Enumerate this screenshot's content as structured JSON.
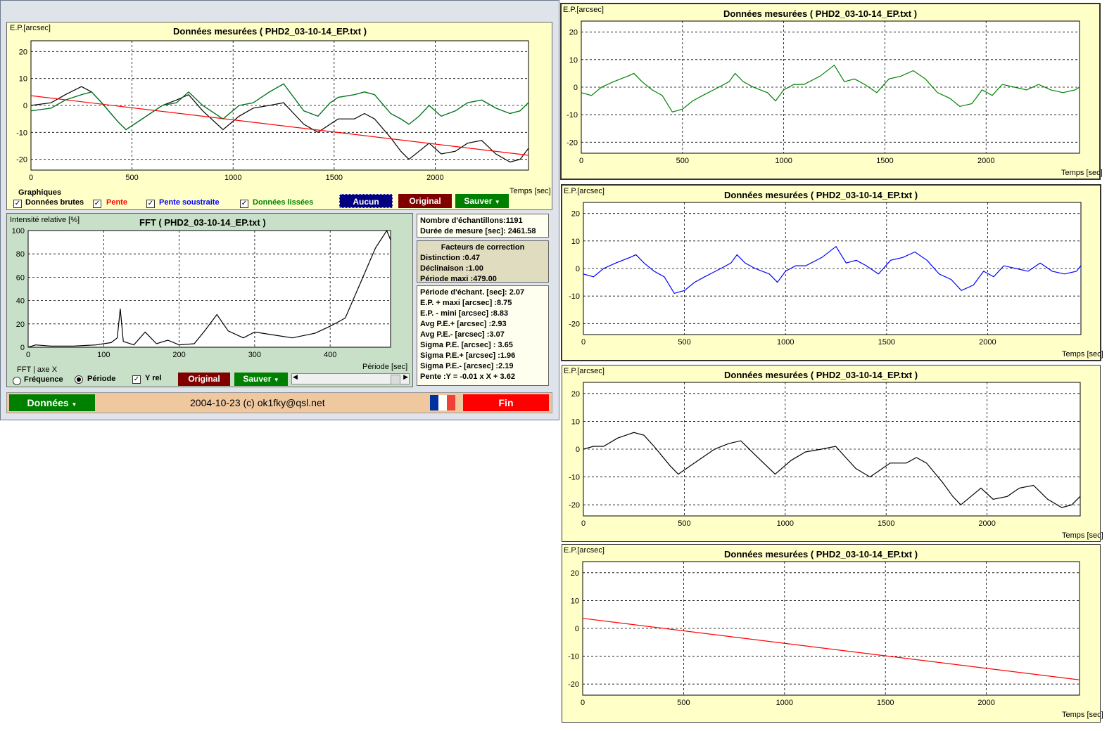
{
  "main": {
    "ylabel": "E.P.[arcsec]",
    "title": "Données mesurées ( PHD2_03-10-14_EP.txt )",
    "xlabel": "Temps [sec]",
    "legend_title": "Graphiques",
    "cb_raw": "Données brutes",
    "cb_slope": "Pente",
    "cb_sub": "Pente soustraite",
    "cb_smooth": "Données lissées",
    "btn_none": "Aucun",
    "btn_orig": "Original",
    "btn_save": "Sauver"
  },
  "fft": {
    "ylabel": "Intensité relative [%]",
    "title": "FFT ( PHD2_03-10-14_EP.txt )",
    "xlabel": "Période [sec]",
    "axis_title": "FFT | axe X",
    "opt_freq": "Fréquence",
    "opt_period": "Période",
    "cb_yrel": "Y rel",
    "btn_orig": "Original",
    "btn_save": "Sauver"
  },
  "stats1": {
    "n": "Nombre d'échantillons:1191",
    "dur": "Durée de mesure [sec]: 2461.58"
  },
  "corr": {
    "title": "Facteurs de correction",
    "dist": "Distinction :0.47",
    "decl": "Déclinaison :1.00",
    "pmax": "Période maxi :479.00"
  },
  "stats2": {
    "l1": "Période d'échant. [sec]: 2.07",
    "l2": "E.P. + maxi [arcsec] :8.75",
    "l3": "E.P. - mini [arcsec] :8.83",
    "l4": "Avg P.E.+ [arcsec] :2.93",
    "l5": "Avg P.E.- [arcsec] :3.07",
    "l6": "Sigma P.E. [arcsec] : 3.65",
    "l7": "Sigma P.E.+ [arcsec] :1.96",
    "l8": "Sigma P.E.- [arcsec] :2.19",
    "l9": "Pente :Y = -0.01 x X + 3.62"
  },
  "footer": {
    "data_btn": "Données",
    "copyright": "2004-10-23 (c) ok1fky@qsl.net",
    "end_btn": "Fin"
  },
  "colors": {
    "raw": "#000000",
    "slope": "#ff0000",
    "subtracted": "#0000ff",
    "smoothed": "#008000",
    "btn_blue": "#000080",
    "btn_red": "#800000",
    "btn_green": "#008000",
    "btn_end": "#ff0000",
    "footer": "#f0c8a0",
    "plot_bg": "#ffffc8",
    "fft_bg": "#c8e0c8"
  },
  "chart_data": [
    {
      "type": "line",
      "id": "main",
      "xlim": [
        0,
        2461.58
      ],
      "ylim": [
        -24,
        24
      ],
      "xticks": [
        0,
        500,
        1000,
        1500,
        2000
      ],
      "yticks": [
        20,
        10,
        0,
        -10,
        -20
      ],
      "grid": true,
      "series": [
        {
          "name": "Données brutes",
          "color": "#000000",
          "x": [
            0,
            100,
            170,
            250,
            300,
            350,
            430,
            470,
            550,
            650,
            720,
            780,
            850,
            950,
            1030,
            1100,
            1180,
            1250,
            1300,
            1350,
            1420,
            1480,
            1520,
            1600,
            1650,
            1700,
            1780,
            1830,
            1870,
            1920,
            1970,
            2030,
            2100,
            2160,
            2230,
            2300,
            2370,
            2420,
            2461
          ],
          "y": [
            0,
            1,
            4,
            7,
            5,
            1,
            -6,
            -9,
            -5,
            0,
            2,
            4,
            -2,
            -9,
            -4,
            -1,
            0,
            1,
            -3,
            -7,
            -10,
            -7,
            -5,
            -5,
            -3,
            -5,
            -12,
            -17,
            -20,
            -17,
            -14,
            -18,
            -17,
            -14,
            -13,
            -18,
            -21,
            -20,
            -16
          ]
        },
        {
          "name": "Pente",
          "color": "#ff0000",
          "x": [
            0,
            2461.58
          ],
          "y": [
            3.62,
            -18.5
          ]
        },
        {
          "name": "Pente soustraite",
          "color": "#0000ff",
          "x": [
            0,
            100,
            170,
            250,
            300,
            350,
            430,
            470,
            550,
            650,
            720,
            780,
            850,
            950,
            1030,
            1100,
            1180,
            1250,
            1300,
            1350,
            1420,
            1480,
            1520,
            1600,
            1650,
            1700,
            1780,
            1830,
            1870,
            1920,
            1970,
            2030,
            2100,
            2160,
            2230,
            2300,
            2370,
            2420,
            2461
          ],
          "y": [
            -2,
            -1,
            2,
            4,
            5,
            1,
            -6,
            -9,
            -5,
            0,
            1,
            5,
            0,
            -5,
            0,
            1,
            5,
            8,
            3,
            -2,
            -4,
            1,
            3,
            4,
            5,
            4,
            -3,
            -5,
            -7,
            -4,
            0,
            -4,
            -2,
            1,
            2,
            -1,
            -3,
            -2,
            1
          ]
        },
        {
          "name": "Données lissées",
          "color": "#008000",
          "x": [
            0,
            100,
            170,
            250,
            300,
            350,
            430,
            470,
            550,
            650,
            720,
            780,
            850,
            950,
            1030,
            1100,
            1180,
            1250,
            1300,
            1350,
            1420,
            1480,
            1520,
            1600,
            1650,
            1700,
            1780,
            1830,
            1870,
            1920,
            1970,
            2030,
            2100,
            2160,
            2230,
            2300,
            2370,
            2420,
            2461
          ],
          "y": [
            -2,
            -1,
            2,
            4,
            5,
            1,
            -6,
            -9,
            -5,
            0,
            1,
            5,
            0,
            -5,
            0,
            1,
            5,
            8,
            3,
            -2,
            -4,
            1,
            3,
            4,
            5,
            4,
            -3,
            -5,
            -7,
            -4,
            0,
            -4,
            -2,
            1,
            2,
            -1,
            -3,
            -2,
            1
          ]
        }
      ]
    },
    {
      "type": "line",
      "id": "fft",
      "xlim": [
        0,
        480
      ],
      "ylim": [
        0,
        100
      ],
      "xticks": [
        0,
        100,
        200,
        300,
        400
      ],
      "yticks": [
        100,
        80,
        60,
        40,
        20,
        0
      ],
      "grid": true,
      "series": [
        {
          "name": "",
          "color": "#000000",
          "x": [
            0,
            10,
            30,
            60,
            90,
            100,
            110,
            118,
            122,
            126,
            140,
            155,
            170,
            185,
            200,
            220,
            235,
            250,
            265,
            285,
            300,
            330,
            350,
            380,
            400,
            420,
            440,
            460,
            475,
            480
          ],
          "y": [
            0,
            2,
            1,
            1,
            2,
            3,
            4,
            8,
            33,
            5,
            2,
            13,
            3,
            6,
            2,
            3,
            15,
            28,
            14,
            8,
            13,
            10,
            8,
            12,
            18,
            25,
            55,
            85,
            100,
            92
          ]
        }
      ]
    },
    {
      "type": "line",
      "id": "right-green",
      "xlim": [
        0,
        2461.58
      ],
      "ylim": [
        -24,
        24
      ],
      "xticks": [
        0,
        500,
        1000,
        1500,
        2000
      ],
      "yticks": [
        20,
        10,
        0,
        -10,
        -20
      ],
      "grid": true,
      "series": [
        {
          "name": "",
          "color": "#008000",
          "x": [
            0,
            50,
            100,
            160,
            230,
            260,
            300,
            350,
            400,
            450,
            500,
            550,
            600,
            680,
            730,
            760,
            800,
            850,
            920,
            960,
            1000,
            1050,
            1100,
            1180,
            1250,
            1300,
            1350,
            1400,
            1460,
            1520,
            1580,
            1640,
            1700,
            1760,
            1820,
            1870,
            1930,
            1980,
            2030,
            2080,
            2140,
            2200,
            2260,
            2320,
            2380,
            2440,
            2461
          ],
          "y": [
            -2,
            -3,
            0,
            2,
            4,
            5,
            2,
            -1,
            -3,
            -9,
            -8,
            -5,
            -3,
            0,
            2,
            5,
            2,
            0,
            -2,
            -5,
            -1,
            1,
            1,
            4,
            8,
            2,
            3,
            1,
            -2,
            3,
            4,
            6,
            3,
            -2,
            -4,
            -7,
            -6,
            -1,
            -3,
            1,
            0,
            -1,
            1,
            -1,
            -2,
            -1,
            0
          ]
        }
      ]
    },
    {
      "type": "line",
      "id": "right-blue",
      "xlim": [
        0,
        2461.58
      ],
      "ylim": [
        -24,
        24
      ],
      "xticks": [
        0,
        500,
        1000,
        1500,
        2000
      ],
      "yticks": [
        20,
        10,
        0,
        -10,
        -20
      ],
      "grid": true,
      "series": [
        {
          "name": "",
          "color": "#0000ff",
          "x": [
            0,
            50,
            100,
            160,
            230,
            260,
            300,
            350,
            400,
            450,
            500,
            550,
            600,
            680,
            730,
            760,
            800,
            850,
            920,
            960,
            1000,
            1050,
            1100,
            1180,
            1250,
            1300,
            1350,
            1400,
            1460,
            1520,
            1580,
            1640,
            1700,
            1760,
            1820,
            1870,
            1930,
            1980,
            2030,
            2080,
            2140,
            2200,
            2260,
            2320,
            2380,
            2440,
            2461
          ],
          "y": [
            -2,
            -3,
            0,
            2,
            4,
            5,
            2,
            -1,
            -3,
            -9,
            -8,
            -5,
            -3,
            0,
            2,
            5,
            2,
            0,
            -2,
            -5,
            -1,
            1,
            1,
            4,
            8,
            2,
            3,
            1,
            -2,
            3,
            4,
            6,
            3,
            -2,
            -4,
            -8,
            -6,
            -1,
            -3,
            1,
            0,
            -1,
            2,
            -1,
            -2,
            -1,
            1
          ]
        }
      ]
    },
    {
      "type": "line",
      "id": "right-black",
      "xlim": [
        0,
        2461.58
      ],
      "ylim": [
        -24,
        24
      ],
      "xticks": [
        0,
        500,
        1000,
        1500,
        2000
      ],
      "yticks": [
        20,
        10,
        0,
        -10,
        -20
      ],
      "grid": true,
      "series": [
        {
          "name": "",
          "color": "#000000",
          "x": [
            0,
            50,
            100,
            170,
            250,
            300,
            350,
            430,
            470,
            550,
            650,
            720,
            780,
            850,
            950,
            1030,
            1100,
            1180,
            1250,
            1300,
            1350,
            1420,
            1480,
            1520,
            1600,
            1650,
            1700,
            1780,
            1830,
            1870,
            1920,
            1970,
            2030,
            2100,
            2160,
            2230,
            2300,
            2370,
            2420,
            2461
          ],
          "y": [
            0,
            1,
            1,
            4,
            6,
            5,
            1,
            -6,
            -9,
            -5,
            0,
            2,
            3,
            -2,
            -9,
            -4,
            -1,
            0,
            1,
            -3,
            -7,
            -10,
            -7,
            -5,
            -5,
            -3,
            -5,
            -12,
            -17,
            -20,
            -17,
            -14,
            -18,
            -17,
            -14,
            -13,
            -18,
            -21,
            -20,
            -17
          ]
        }
      ]
    },
    {
      "type": "line",
      "id": "right-red",
      "xlim": [
        0,
        2461.58
      ],
      "ylim": [
        -24,
        24
      ],
      "xticks": [
        0,
        500,
        1000,
        1500,
        2000
      ],
      "yticks": [
        20,
        10,
        0,
        -10,
        -20
      ],
      "grid": true,
      "series": [
        {
          "name": "",
          "color": "#ff0000",
          "x": [
            0,
            2461.58
          ],
          "y": [
            3.62,
            -18.5
          ]
        }
      ]
    }
  ],
  "right_panels": {
    "ylabel": "E.P.[arcsec]",
    "title": "Données mesurées ( PHD2_03-10-14_EP.txt )",
    "xlabel": "Temps [sec]"
  }
}
